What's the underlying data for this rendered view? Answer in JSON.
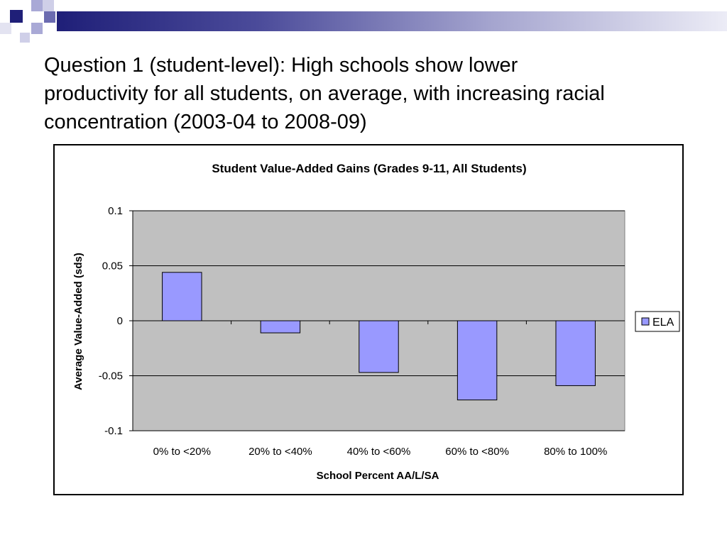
{
  "slide": {
    "title": "Question 1 (student-level):  High schools show lower\nproductivity for all students, on average, with increasing racial\nconcentration (2003-04 to 2008-09)"
  },
  "colors": {
    "accent_dark": "#1f1f78",
    "accent_mid": "#6b6bb0",
    "accent_light": "#a9a9d6",
    "plot_area": "#c0c0c0",
    "bar_fill": "#9999ff"
  },
  "chart_data": {
    "type": "bar",
    "title": "Student Value-Added Gains (Grades 9-11, All Students)",
    "xlabel": "School Percent AA/L/SA",
    "ylabel": "Average Value-Added (sds)",
    "categories": [
      "0% to <20%",
      "20% to <40%",
      "40% to <60%",
      "60% to <80%",
      "80% to 100%"
    ],
    "series": [
      {
        "name": "ELA",
        "values": [
          0.044,
          -0.011,
          -0.047,
          -0.072,
          -0.059
        ]
      }
    ],
    "ylim": [
      -0.1,
      0.1
    ],
    "yticks": [
      "0.1",
      "0.05",
      "0",
      "-0.05",
      "-0.1"
    ],
    "grid": true,
    "legend_position": "right"
  }
}
